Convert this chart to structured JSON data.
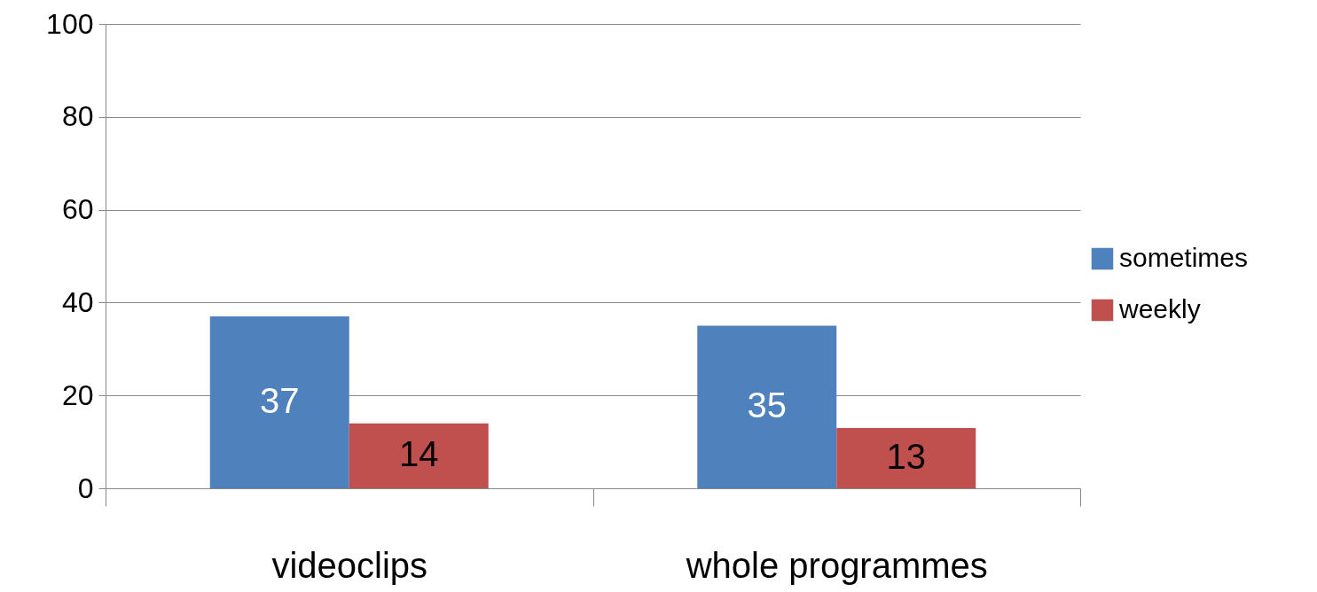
{
  "chart_data": {
    "type": "bar",
    "categories": [
      "videoclips",
      "whole programmes"
    ],
    "series": [
      {
        "name": "sometimes",
        "color": "#4f81bd",
        "values": [
          37,
          35
        ]
      },
      {
        "name": "weekly",
        "color": "#c0504d",
        "values": [
          14,
          13
        ]
      }
    ],
    "ylim": [
      0,
      100
    ],
    "yticks": [
      0,
      20,
      40,
      60,
      80,
      100
    ],
    "grid": "y",
    "legend": "right",
    "data_labels": true
  }
}
